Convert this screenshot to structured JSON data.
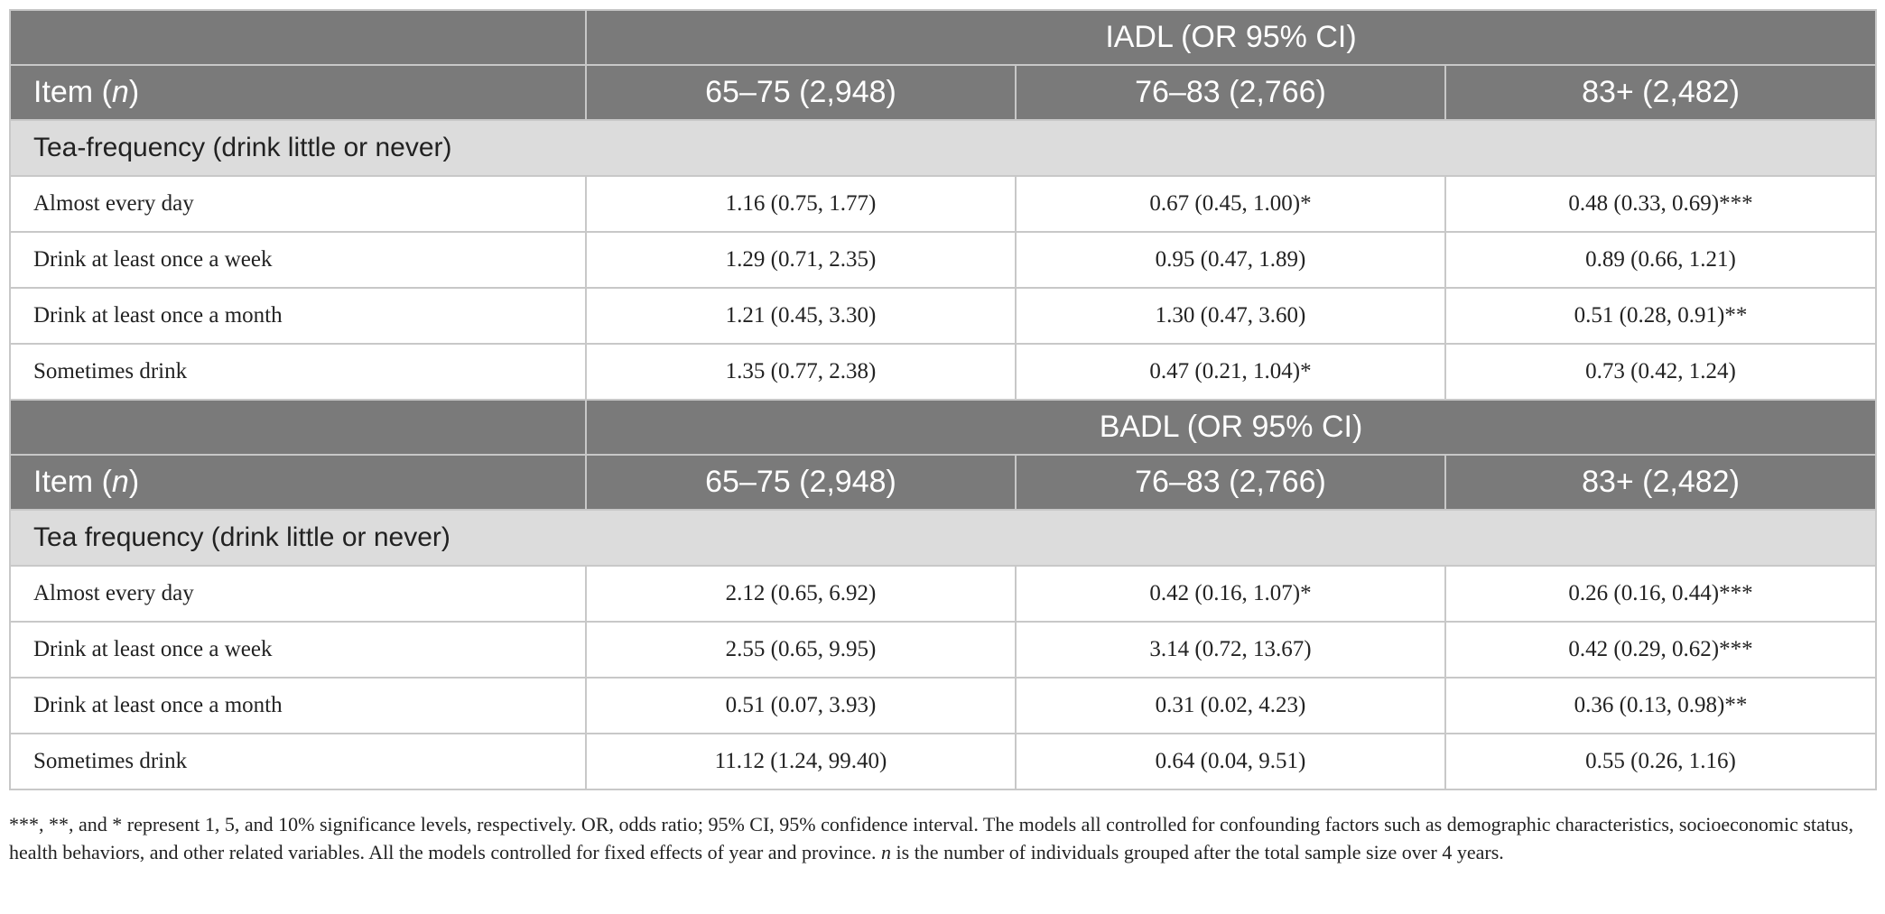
{
  "table": {
    "blocks": [
      {
        "group_title": "IADL (OR 95% CI)",
        "item_header_text": "Item",
        "item_header_n": "n",
        "columns": [
          "65–75 (2,948)",
          "76–83 (2,766)",
          "83+ (2,482)"
        ],
        "section_label": "Tea-frequency (drink little or never)",
        "rows": [
          {
            "label": "Almost every day",
            "values": [
              "1.16 (0.75, 1.77)",
              "0.67 (0.45, 1.00)*",
              "0.48 (0.33, 0.69)***"
            ]
          },
          {
            "label": "Drink at least once a week",
            "values": [
              "1.29 (0.71, 2.35)",
              "0.95 (0.47, 1.89)",
              "0.89 (0.66, 1.21)"
            ]
          },
          {
            "label": "Drink at least once a month",
            "values": [
              "1.21 (0.45, 3.30)",
              "1.30 (0.47, 3.60)",
              "0.51 (0.28, 0.91)**"
            ]
          },
          {
            "label": "Sometimes drink",
            "values": [
              "1.35 (0.77, 2.38)",
              "0.47 (0.21, 1.04)*",
              "0.73 (0.42, 1.24)"
            ]
          }
        ]
      },
      {
        "group_title": "BADL (OR 95% CI)",
        "item_header_text": "Item",
        "item_header_n": "n",
        "columns": [
          "65–75 (2,948)",
          "76–83 (2,766)",
          "83+ (2,482)"
        ],
        "section_label": "Tea frequency (drink little or never)",
        "rows": [
          {
            "label": "Almost every day",
            "values": [
              "2.12 (0.65, 6.92)",
              "0.42 (0.16, 1.07)*",
              "0.26 (0.16, 0.44)***"
            ]
          },
          {
            "label": "Drink at least once a week",
            "values": [
              "2.55 (0.65, 9.95)",
              "3.14 (0.72, 13.67)",
              "0.42 (0.29, 0.62)***"
            ]
          },
          {
            "label": "Drink at least once a month",
            "values": [
              "0.51 (0.07, 3.93)",
              "0.31 (0.02, 4.23)",
              "0.36 (0.13, 0.98)**"
            ]
          },
          {
            "label": "Sometimes drink",
            "values": [
              "11.12 (1.24, 99.40)",
              "0.64 (0.04, 9.51)",
              "0.55 (0.26, 1.16)"
            ]
          }
        ]
      }
    ]
  },
  "footnote": {
    "text_before_n": "***, **, and * represent 1, 5, and 10% significance levels, respectively. OR, odds ratio; 95% CI, 95% confidence interval. The models all controlled for confounding factors such as demographic characteristics, socioeconomic status, health behaviors, and other related variables. All the models controlled for fixed effects of year and province. ",
    "n_symbol": "n",
    "text_after_n": " is the number of individuals grouped after the total sample size over 4 years."
  },
  "colors": {
    "header_bg": "#7a7a7a",
    "section_bg": "#dcdcdc",
    "border": "#c8c8c8"
  }
}
